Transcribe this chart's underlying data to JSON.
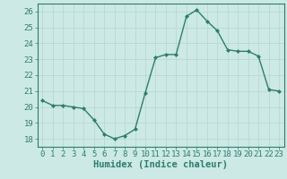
{
  "x": [
    0,
    1,
    2,
    3,
    4,
    5,
    6,
    7,
    8,
    9,
    10,
    11,
    12,
    13,
    14,
    15,
    16,
    17,
    18,
    19,
    20,
    21,
    22,
    23
  ],
  "y": [
    20.4,
    20.1,
    20.1,
    20.0,
    19.9,
    19.2,
    18.3,
    18.0,
    18.2,
    18.6,
    20.9,
    23.1,
    23.3,
    23.3,
    25.7,
    26.1,
    25.4,
    24.8,
    23.6,
    23.5,
    23.5,
    23.2,
    21.1,
    21.0
  ],
  "line_color": "#2d7d6e",
  "marker": "D",
  "marker_size": 2.0,
  "bg_color": "#cce9e5",
  "grid_color": "#b8d8d4",
  "xlabel": "Humidex (Indice chaleur)",
  "xlim": [
    -0.5,
    23.5
  ],
  "ylim": [
    17.5,
    26.5
  ],
  "yticks": [
    18,
    19,
    20,
    21,
    22,
    23,
    24,
    25,
    26
  ],
  "xticks": [
    0,
    1,
    2,
    3,
    4,
    5,
    6,
    7,
    8,
    9,
    10,
    11,
    12,
    13,
    14,
    15,
    16,
    17,
    18,
    19,
    20,
    21,
    22,
    23
  ],
  "tick_color": "#2d7d6e",
  "xlabel_fontsize": 7.5,
  "tick_fontsize": 6.5,
  "spine_color": "#2d7d6e",
  "linewidth": 1.0
}
